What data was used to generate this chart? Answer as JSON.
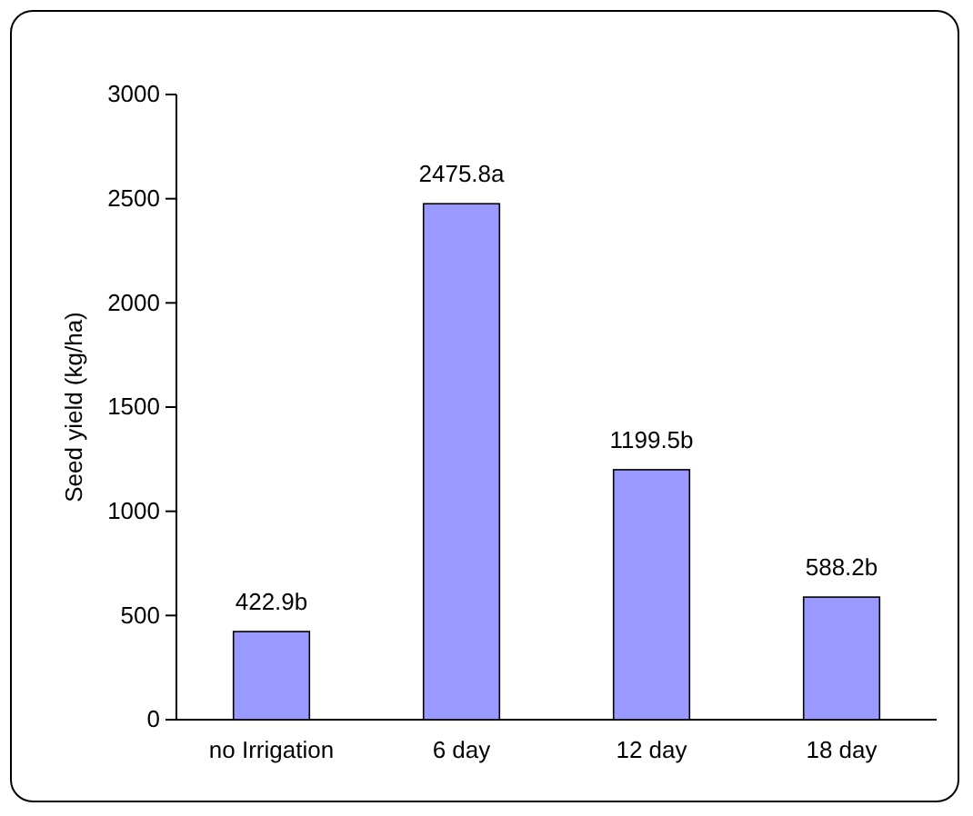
{
  "chart_data": {
    "type": "bar",
    "ylabel": "Seed yield (kg/ha)",
    "categories": [
      "no Irrigation",
      "6 day",
      "12 day",
      "18 day"
    ],
    "values": [
      422.9,
      2475.8,
      1199.5,
      588.2
    ],
    "value_labels": [
      "422.9b",
      "2475.8a",
      "1199.5b",
      "588.2b"
    ],
    "color": "#9999ff",
    "ylim": [
      0,
      3000
    ],
    "yticks": [
      0,
      500,
      1000,
      1500,
      2000,
      2500,
      3000
    ],
    "grid": false
  }
}
